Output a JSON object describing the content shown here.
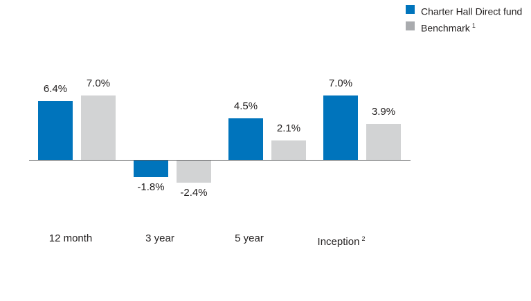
{
  "legend": {
    "items": [
      {
        "label": "Charter Hall Direct fund",
        "sup": "",
        "color": "#0074BC"
      },
      {
        "label": "Benchmark",
        "sup": "1",
        "color": "#A9ABAE"
      }
    ]
  },
  "chart_data": {
    "type": "bar",
    "title": "",
    "categories": [
      {
        "label": "12 month",
        "sup": ""
      },
      {
        "label": "3 year",
        "sup": ""
      },
      {
        "label": "5 year",
        "sup": ""
      },
      {
        "label": "Inception",
        "sup": "2"
      }
    ],
    "series": [
      {
        "name": "Charter Hall Direct fund",
        "color": "#0074BC",
        "values": [
          6.4,
          -1.8,
          4.5,
          7.0
        ],
        "labels": [
          "6.4%",
          "-1.8%",
          "4.5%",
          "7.0%"
        ]
      },
      {
        "name": "Benchmark",
        "color": "#D2D3D4",
        "values": [
          7.0,
          -2.4,
          2.1,
          3.9
        ],
        "labels": [
          "7.0%",
          "-2.4%",
          "2.1%",
          "3.9%"
        ]
      }
    ],
    "xlabel": "",
    "ylabel": "",
    "unit": "%",
    "ylim": [
      -3,
      8
    ],
    "grid": false,
    "legend_position": "top-right"
  },
  "colors": {
    "axis": "#58595B",
    "text": "#221F1F"
  }
}
